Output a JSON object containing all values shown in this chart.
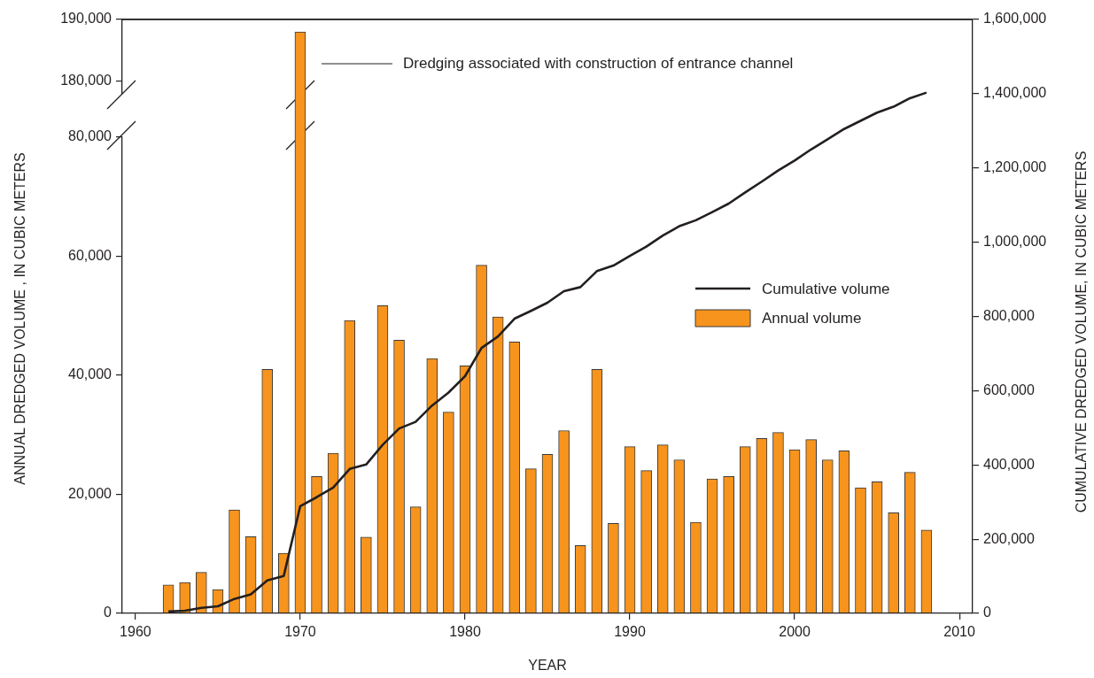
{
  "chart_data": [
    {
      "type": "bar",
      "x": [
        1970
      ],
      "values": [
        188000
      ],
      "color": "#f7941d",
      "xlim": [
        1959.2,
        2010.8
      ],
      "ylim": [
        178000,
        190000
      ],
      "yticks": [
        {
          "value": 180000,
          "label": "180,000"
        },
        {
          "value": 190000,
          "label": "190,000"
        }
      ],
      "tick_labels": "y",
      "annotations": [
        "Dredging associated with construction of entrance channel"
      ]
    },
    {
      "type": "bar",
      "x": [
        1962,
        1963,
        1964,
        1965,
        1966,
        1967,
        1968,
        1969,
        1970,
        1971,
        1972,
        1973,
        1974,
        1975,
        1976,
        1977,
        1978,
        1979,
        1980,
        1981,
        1982,
        1983,
        1984,
        1985,
        1986,
        1987,
        1988,
        1989,
        1990,
        1991,
        1992,
        1993,
        1994,
        1995,
        1996,
        1997,
        1998,
        1999,
        2000,
        2001,
        2002,
        2003,
        2004,
        2005,
        2006,
        2007,
        2008
      ],
      "series": [
        {
          "name": "Annual volume",
          "color": "#f7941d",
          "values": [
            4800,
            5200,
            6900,
            4000,
            17400,
            12900,
            41000,
            10100,
            null,
            23000,
            26900,
            49200,
            12800,
            51700,
            45900,
            17900,
            42800,
            33800,
            41600,
            58500,
            49800,
            45600,
            24300,
            26700,
            30700,
            11400,
            41000,
            15100,
            28000,
            24000,
            28300,
            25800,
            15300,
            22600,
            23000,
            28000,
            29400,
            30400,
            27500,
            29200,
            25800,
            27300,
            21100,
            22100,
            16900,
            23700,
            14000
          ]
        }
      ],
      "xlim": [
        1959.2,
        2010.8
      ],
      "ylim": [
        0,
        80000
      ],
      "yticks": [
        0,
        {
          "value": 20000,
          "label": "20,000"
        },
        {
          "value": 40000,
          "label": "40,000"
        },
        {
          "value": 60000,
          "label": "60,000"
        },
        {
          "value": 80000,
          "label": "80,000"
        }
      ],
      "ylabel": "ANNUAL DREDGED VOLUME , IN CUBIC METERS",
      "tick_labels": "y",
      "legend": "right"
    },
    {
      "type": "line",
      "x": [
        1962,
        1963,
        1964,
        1965,
        1966,
        1967,
        1968,
        1969,
        1970,
        1971,
        1972,
        1973,
        1974,
        1975,
        1976,
        1977,
        1978,
        1979,
        1980,
        1981,
        1982,
        1983,
        1984,
        1985,
        1986,
        1987,
        1988,
        1989,
        1990,
        1991,
        1992,
        1993,
        1994,
        1995,
        1996,
        1997,
        1998,
        1999,
        2000,
        2001,
        2002,
        2003,
        2004,
        2005,
        2006,
        2007,
        2008
      ],
      "series": [
        {
          "name": "Cumulative volume",
          "color": "#231f20",
          "axis": "y2",
          "values": [
            5000,
            7000,
            15000,
            19000,
            39000,
            51000,
            89000,
            101000,
            289000,
            313000,
            339000,
            389000,
            401000,
            454000,
            498000,
            516000,
            560000,
            595000,
            639000,
            715000,
            746000,
            794000,
            815000,
            837000,
            868000,
            879000,
            922000,
            937000,
            963000,
            988000,
            1018000,
            1043000,
            1059000,
            1081000,
            1104000,
            1134000,
            1163000,
            1193000,
            1220000,
            1250000,
            1277000,
            1305000,
            1327000,
            1349000,
            1365000,
            1388000,
            1403000
          ]
        }
      ],
      "xlim": [
        1959.2,
        2010.8
      ],
      "xticks": [
        1960,
        1970,
        1980,
        1990,
        2000,
        2010
      ],
      "xlabel": "YEAR",
      "y2lim": [
        0,
        1600000
      ],
      "y2ticks": [
        0,
        {
          "value": 200000,
          "label": "200,000"
        },
        {
          "value": 400000,
          "label": "400,000"
        },
        {
          "value": 600000,
          "label": "600,000"
        },
        {
          "value": 800000,
          "label": "800,000"
        },
        {
          "value": 1000000,
          "label": "1,000,000"
        },
        {
          "value": 1200000,
          "label": "1,200,000"
        },
        {
          "value": 1400000,
          "label": "1,400,000"
        },
        {
          "value": 1600000,
          "label": "1,600,000"
        }
      ],
      "y2label": "CUMULATIVE DREDGED VOLUME, IN CUBIC METERS",
      "legend": "right"
    }
  ]
}
